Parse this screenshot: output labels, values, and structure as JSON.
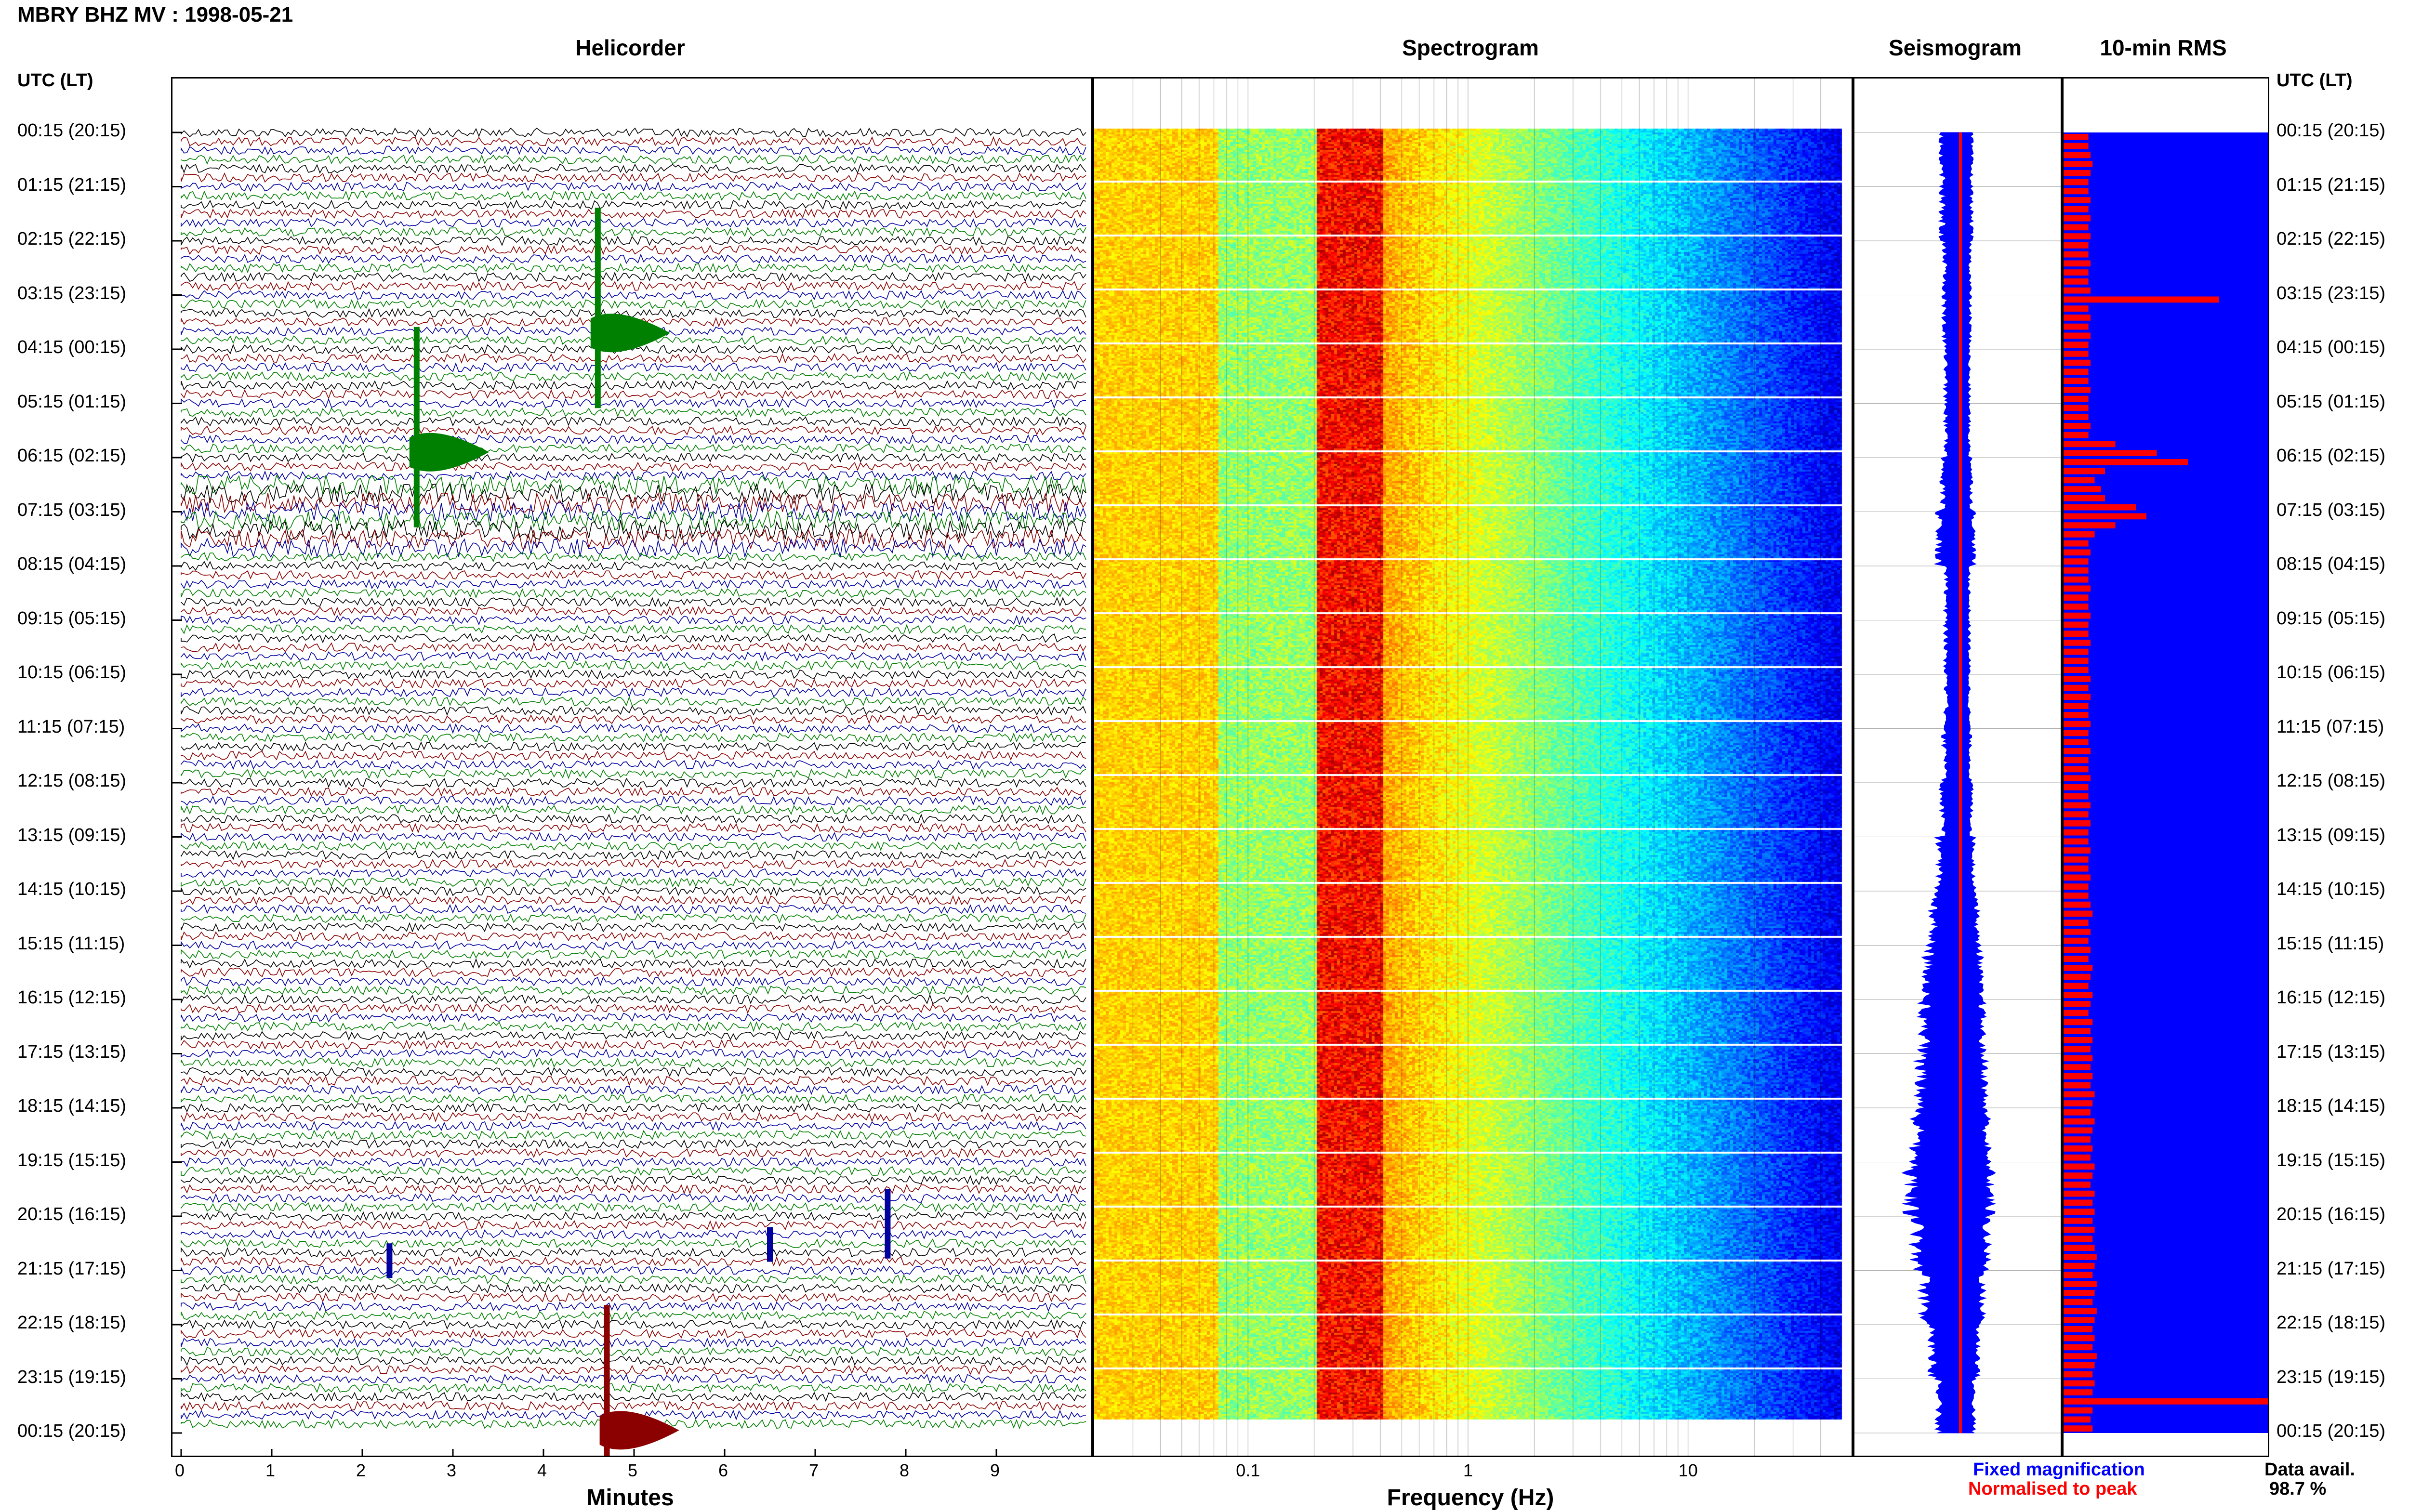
{
  "header": {
    "title": "MBRY BHZ MV : 1998-05-21",
    "utc_label_left": "UTC (LT)",
    "utc_label_right": "UTC (LT)"
  },
  "panels": {
    "helicorder": "Helicorder",
    "spectrogram": "Spectrogram",
    "seismogram": "Seismogram",
    "rms": "10-min RMS"
  },
  "legend": {
    "fixed": "Fixed magnification",
    "normalised": "Normalised to peak",
    "fixed_color": "#0000ff",
    "normalised_color": "#ff0000"
  },
  "data_availability": {
    "label": "Data avail.",
    "value": "98.7 %"
  },
  "colors": {
    "trace_cycle": [
      "#000000",
      "#8b0000",
      "#0000a0",
      "#008000"
    ],
    "seismogram": "#0000ff",
    "rms_bar": "#ff0000",
    "rms_background": "#0000ff"
  },
  "chart_data": [
    {
      "type": "line",
      "name": "helicorder",
      "title": "Helicorder",
      "xlabel": "Minutes",
      "x_ticks": [
        "0",
        "1",
        "2",
        "3",
        "4",
        "5",
        "6",
        "7",
        "8",
        "9"
      ],
      "xlim": [
        0,
        10
      ],
      "time_labels": [
        "00:15 (20:15)",
        "01:15 (21:15)",
        "02:15 (22:15)",
        "03:15 (23:15)",
        "04:15 (00:15)",
        "05:15 (01:15)",
        "06:15 (02:15)",
        "07:15 (03:15)",
        "08:15 (04:15)",
        "09:15 (05:15)",
        "10:15 (06:15)",
        "11:15 (07:15)",
        "12:15 (08:15)",
        "13:15 (09:15)",
        "14:15 (10:15)",
        "15:15 (11:15)",
        "16:15 (12:15)",
        "17:15 (13:15)",
        "18:15 (14:15)",
        "19:15 (15:15)",
        "20:15 (16:15)",
        "21:15 (17:15)",
        "22:15 (18:15)",
        "23:15 (19:15)",
        "00:15 (20:15)"
      ],
      "lines_per_hour": 6,
      "events": [
        {
          "hour": 3.7,
          "minute": 4.6,
          "color": "#008000",
          "amplitude": "large"
        },
        {
          "hour": 5.9,
          "minute": 2.6,
          "color": "#008000",
          "amplitude": "large"
        },
        {
          "hour": 23.95,
          "minute": 4.7,
          "color": "#8b0000",
          "amplitude": "large"
        },
        {
          "hour": 20.9,
          "minute": 2.3,
          "color": "#0000a0",
          "amplitude": "small"
        },
        {
          "hour": 20.6,
          "minute": 6.5,
          "color": "#0000a0",
          "amplitude": "small"
        },
        {
          "hour": 20.3,
          "minute": 7.8,
          "color": "#0000a0",
          "amplitude": "medium"
        }
      ]
    },
    {
      "type": "heatmap",
      "name": "spectrogram",
      "title": "Spectrogram",
      "xlabel": "Frequency (Hz)",
      "x_scale": "log",
      "xlim": [
        0.02,
        50
      ],
      "x_ticks": [
        "0.1",
        "1",
        "10"
      ],
      "dominant_band_hz": [
        0.2,
        0.4
      ]
    },
    {
      "type": "area",
      "name": "seismogram",
      "title": "Seismogram",
      "amplitude_fixed_by_hour": [
        0.25,
        0.25,
        0.22,
        0.22,
        0.2,
        0.2,
        0.25,
        0.3,
        0.2,
        0.2,
        0.2,
        0.22,
        0.25,
        0.3,
        0.38,
        0.45,
        0.5,
        0.55,
        0.6,
        0.68,
        0.6,
        0.5,
        0.4,
        0.3
      ]
    },
    {
      "type": "bar",
      "name": "rms",
      "title": "10-min RMS",
      "orientation": "horizontal",
      "rms_by_10min": [
        0.12,
        0.12,
        0.13,
        0.14,
        0.13,
        0.12,
        0.12,
        0.13,
        0.12,
        0.13,
        0.12,
        0.13,
        0.12,
        0.12,
        0.13,
        0.12,
        0.12,
        0.13,
        0.75,
        0.12,
        0.13,
        0.12,
        0.13,
        0.12,
        0.12,
        0.13,
        0.12,
        0.12,
        0.13,
        0.12,
        0.12,
        0.12,
        0.13,
        0.12,
        0.25,
        0.45,
        0.6,
        0.2,
        0.15,
        0.18,
        0.2,
        0.35,
        0.4,
        0.25,
        0.15,
        0.12,
        0.13,
        0.12,
        0.12,
        0.12,
        0.13,
        0.12,
        0.12,
        0.13,
        0.12,
        0.12,
        0.13,
        0.12,
        0.12,
        0.12,
        0.13,
        0.12,
        0.13,
        0.12,
        0.12,
        0.13,
        0.12,
        0.12,
        0.13,
        0.12,
        0.12,
        0.13,
        0.12,
        0.12,
        0.13,
        0.12,
        0.13,
        0.12,
        0.12,
        0.13,
        0.12,
        0.12,
        0.13,
        0.12,
        0.12,
        0.13,
        0.14,
        0.12,
        0.13,
        0.12,
        0.13,
        0.12,
        0.14,
        0.13,
        0.12,
        0.14,
        0.13,
        0.12,
        0.14,
        0.13,
        0.14,
        0.13,
        0.14,
        0.13,
        0.14,
        0.13,
        0.15,
        0.14,
        0.13,
        0.15,
        0.14,
        0.13,
        0.14,
        0.13,
        0.15,
        0.14,
        0.13,
        0.15,
        0.14,
        0.15,
        0.14,
        0.15,
        0.14,
        0.15,
        0.16,
        0.15,
        0.14,
        0.16,
        0.15,
        0.14,
        0.16,
        0.15,
        0.14,
        0.15,
        0.14,
        0.16,
        0.15,
        0.14,
        0.15,
        0.14,
        1.0,
        0.14,
        0.13,
        0.14
      ]
    }
  ]
}
